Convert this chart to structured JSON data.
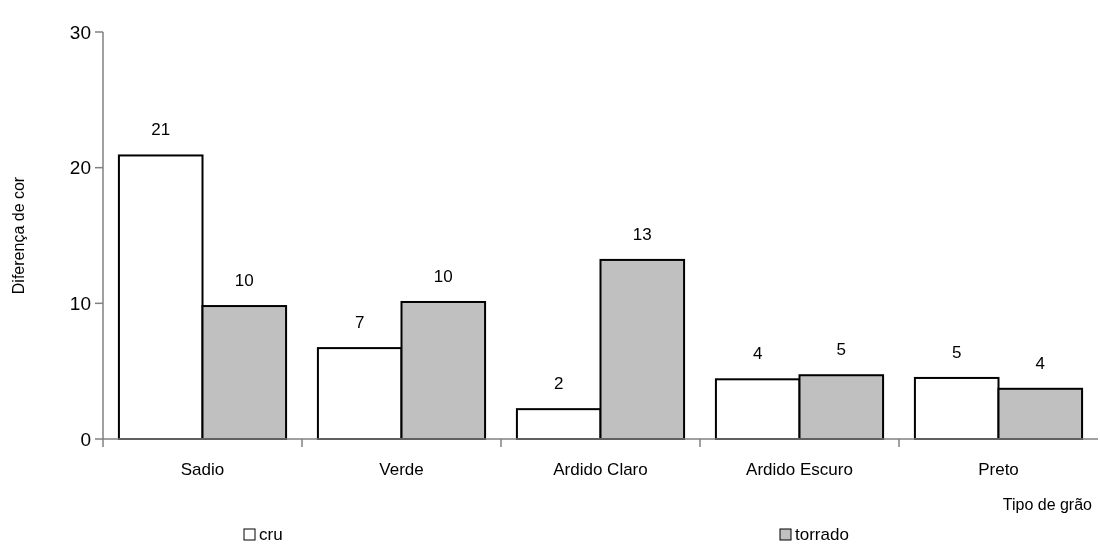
{
  "chart_data": {
    "type": "bar",
    "xlabel": "Tipo de grão",
    "ylabel": "Diferença de cor",
    "categories": [
      "Sadio",
      "Verde",
      "Ardido Claro",
      "Ardido Escuro",
      "Preto"
    ],
    "series": [
      {
        "name": "cru",
        "color": "#ffffff",
        "values": [
          20.9,
          6.7,
          2.2,
          4.4,
          4.5
        ],
        "value_labels": [
          "21",
          "7",
          "2",
          "4",
          "5"
        ]
      },
      {
        "name": "torrado",
        "color": "#c0c0c0",
        "values": [
          9.8,
          10.1,
          13.2,
          4.7,
          3.7
        ],
        "value_labels": [
          "10",
          "10",
          "13",
          "5",
          "4"
        ]
      }
    ],
    "ylim": [
      0,
      30
    ],
    "yticks": [
      0,
      10,
      20,
      30
    ],
    "grid": false,
    "legend": "bottom"
  }
}
